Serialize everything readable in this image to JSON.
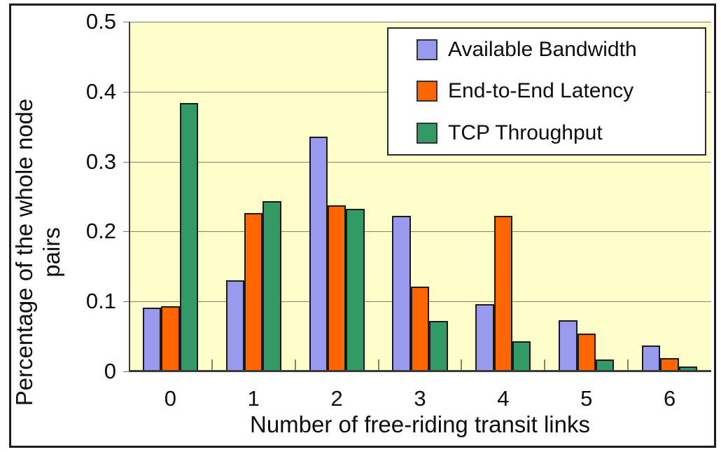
{
  "chart_data": {
    "type": "bar",
    "title": "",
    "xlabel": "Number of free-riding transit links",
    "ylabel": "Percentage of the whole node pairs",
    "ylabel_lines": [
      "Percentage of the whole node",
      "pairs"
    ],
    "categories": [
      "0",
      "1",
      "2",
      "3",
      "4",
      "5",
      "6"
    ],
    "series": [
      {
        "name": "Available Bandwidth",
        "slug": "available-bandwidth",
        "color": "#9999EE",
        "values": [
          0.091,
          0.13,
          0.336,
          0.222,
          0.096,
          0.073,
          0.037
        ]
      },
      {
        "name": "End-to-End Latency",
        "slug": "end-to-end-latency",
        "color": "#FF6600",
        "values": [
          0.093,
          0.226,
          0.237,
          0.121,
          0.222,
          0.054,
          0.019
        ]
      },
      {
        "name": "TCP Throughput",
        "slug": "tcp-throughput",
        "color": "#339966",
        "values": [
          0.384,
          0.244,
          0.232,
          0.072,
          0.043,
          0.017,
          0.007
        ]
      }
    ],
    "ylim": [
      0,
      0.5
    ],
    "yticks": [
      0,
      0.1,
      0.2,
      0.3,
      0.4,
      0.5
    ],
    "ytick_labels": [
      "0",
      "0.1",
      "0.2",
      "0.3",
      "0.4",
      "0.5"
    ],
    "grid": true,
    "legend_position": "top-right",
    "plot_bg": "#FFFFCC",
    "bar_gap_ratio": 0.5
  }
}
